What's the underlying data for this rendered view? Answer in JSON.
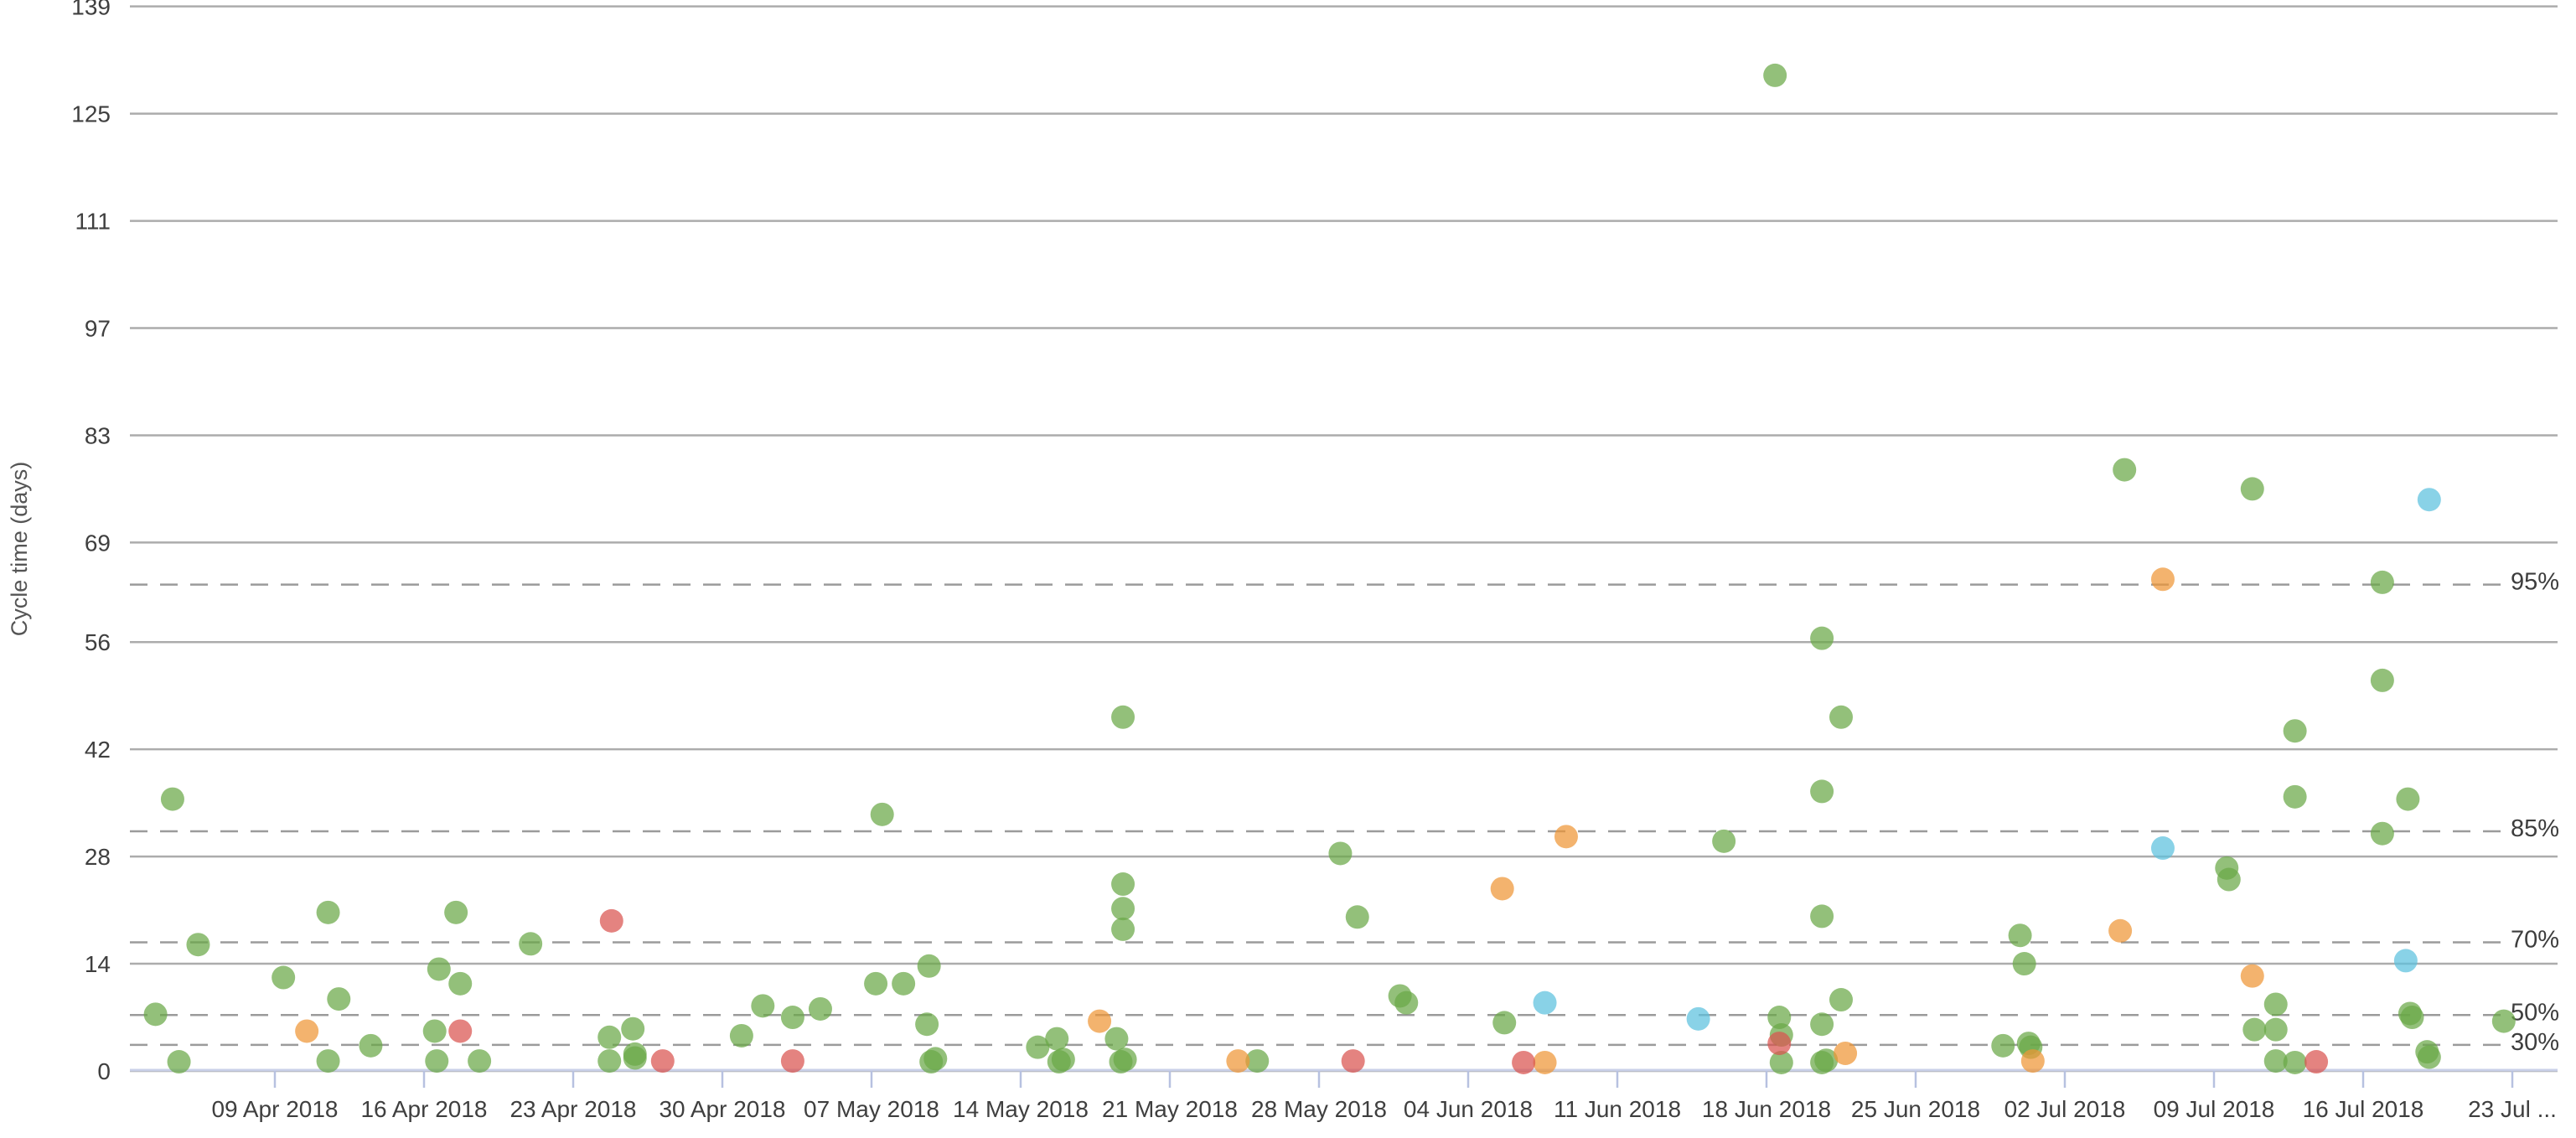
{
  "chart_data": {
    "type": "scatter",
    "ylabel": "Cycle time (days)",
    "y_ticks": [
      0,
      14,
      28,
      42,
      56,
      69,
      83,
      97,
      111,
      125,
      139
    ],
    "ylim": [
      0,
      139
    ],
    "x_tick_labels": [
      "09 Apr 2018",
      "16 Apr 2018",
      "23 Apr 2018",
      "30 Apr 2018",
      "07 May 2018",
      "14 May 2018",
      "21 May 2018",
      "28 May 2018",
      "04 Jun 2018",
      "11 Jun 2018",
      "18 Jun 2018",
      "25 Jun 2018",
      "02 Jul 2018",
      "09 Jul 2018",
      "16 Jul 2018",
      "23 Jul ..."
    ],
    "x_axis_unit": "days_since_02_Apr_2018",
    "x_tick_positions_days": [
      7,
      14,
      21,
      28,
      35,
      42,
      49,
      56,
      63,
      70,
      77,
      84,
      91,
      98,
      105,
      112
    ],
    "xlim_days": [
      0,
      122
    ],
    "grid": "horizontal-only",
    "legend_position": "none",
    "percentile_lines": [
      {
        "label": "95%",
        "value": 63.5
      },
      {
        "label": "85%",
        "value": 31.3
      },
      {
        "label": "70%",
        "value": 16.8
      },
      {
        "label": "50%",
        "value": 7.3
      },
      {
        "label": "30%",
        "value": 3.4
      }
    ],
    "series": [
      {
        "name": "green",
        "color": "#6AA846",
        "points": [
          [
            1.4,
            7.4
          ],
          [
            2.2,
            35.5
          ],
          [
            2.5,
            1.2
          ],
          [
            3.4,
            16.5
          ],
          [
            7.4,
            12.2
          ],
          [
            9.5,
            20.7
          ],
          [
            9.5,
            1.3
          ],
          [
            10,
            9.4
          ],
          [
            11.5,
            3.3
          ],
          [
            14.5,
            5.2
          ],
          [
            14.7,
            13.3
          ],
          [
            14.6,
            1.3
          ],
          [
            15.5,
            20.7
          ],
          [
            15.7,
            11.4
          ],
          [
            16.6,
            1.3
          ],
          [
            19,
            16.6
          ],
          [
            22.7,
            4.4
          ],
          [
            22.7,
            1.3
          ],
          [
            23.8,
            5.5
          ],
          [
            23.9,
            2.2
          ],
          [
            23.9,
            1.7
          ],
          [
            28.9,
            4.6
          ],
          [
            29.9,
            8.5
          ],
          [
            31.3,
            7
          ],
          [
            32.6,
            8.1
          ],
          [
            35.2,
            11.4
          ],
          [
            35.5,
            33.5
          ],
          [
            36.5,
            11.4
          ],
          [
            37.6,
            6.1
          ],
          [
            37.7,
            13.7
          ],
          [
            37.8,
            1.2
          ],
          [
            38,
            1.6
          ],
          [
            42.8,
            3.1
          ],
          [
            43.7,
            4.2
          ],
          [
            43.8,
            1.2
          ],
          [
            44,
            1.5
          ],
          [
            46.5,
            4.2
          ],
          [
            46.7,
            1.2
          ],
          [
            46.9,
            1.5
          ],
          [
            46.8,
            46.2
          ],
          [
            46.8,
            24.4
          ],
          [
            46.8,
            21.2
          ],
          [
            46.8,
            18.5
          ],
          [
            53.1,
            1.3
          ],
          [
            57,
            28.4
          ],
          [
            57.8,
            20.1
          ],
          [
            59.8,
            9.8
          ],
          [
            60.1,
            8.9
          ],
          [
            64.7,
            6.3
          ],
          [
            75,
            30
          ],
          [
            77.4,
            130
          ],
          [
            77.6,
            7
          ],
          [
            77.7,
            4.7
          ],
          [
            77.7,
            1.1
          ],
          [
            79.6,
            56.5
          ],
          [
            79.6,
            36.5
          ],
          [
            79.6,
            20.2
          ],
          [
            79.6,
            6.1
          ],
          [
            79.6,
            1.1
          ],
          [
            79.8,
            1.4
          ],
          [
            80.5,
            46.2
          ],
          [
            80.5,
            9.3
          ],
          [
            88.1,
            3.3
          ],
          [
            88.9,
            17.7
          ],
          [
            89.1,
            14
          ],
          [
            89.3,
            3.6
          ],
          [
            89.4,
            3.1
          ],
          [
            93.8,
            78.5
          ],
          [
            98.6,
            26.5
          ],
          [
            98.7,
            25
          ],
          [
            99.8,
            76
          ],
          [
            99.9,
            5.4
          ],
          [
            100.9,
            8.7
          ],
          [
            100.9,
            5.4
          ],
          [
            100.9,
            1.3
          ],
          [
            101.8,
            1.1
          ],
          [
            101.8,
            44.4
          ],
          [
            101.8,
            35.8
          ],
          [
            105.9,
            63.8
          ],
          [
            105.9,
            51
          ],
          [
            105.9,
            31
          ],
          [
            107.1,
            35.5
          ],
          [
            107.2,
            7.5
          ],
          [
            107.3,
            7
          ],
          [
            108,
            2.5
          ],
          [
            108.1,
            1.8
          ],
          [
            111.6,
            6.5
          ]
        ]
      },
      {
        "name": "orange",
        "color": "#EF9536",
        "points": [
          [
            8.5,
            5.2
          ],
          [
            45.7,
            6.5
          ],
          [
            52.2,
            1.3
          ],
          [
            64.6,
            23.8
          ],
          [
            66.6,
            1.1
          ],
          [
            67.6,
            30.6
          ],
          [
            80.7,
            2.3
          ],
          [
            89.5,
            1.3
          ],
          [
            93.6,
            18.3
          ],
          [
            95.6,
            64.2
          ],
          [
            99.8,
            12.4
          ]
        ]
      },
      {
        "name": "red",
        "color": "#D9534F",
        "points": [
          [
            15.7,
            5.2
          ],
          [
            22.8,
            19.6
          ],
          [
            25.2,
            1.3
          ],
          [
            31.3,
            1.3
          ],
          [
            57.6,
            1.3
          ],
          [
            65.6,
            1.1
          ],
          [
            77.6,
            3.6
          ],
          [
            102.8,
            1.2
          ]
        ]
      },
      {
        "name": "blue",
        "color": "#5BC0DE",
        "points": [
          [
            66.6,
            8.9
          ],
          [
            73.8,
            6.8
          ],
          [
            95.6,
            29.1
          ],
          [
            107,
            14.4
          ],
          [
            108.1,
            74.6
          ]
        ]
      }
    ],
    "style_colors": {
      "gridline_solid": "#ACACAC",
      "gridline_dashed": "#9B9B9B",
      "axis_line": "#C9D0E8",
      "axis_tick": "#B7C1E0",
      "tick_text": "#3F3F3F",
      "percent_text": "#3D3D3D",
      "dot_opacity": 0.72
    }
  }
}
